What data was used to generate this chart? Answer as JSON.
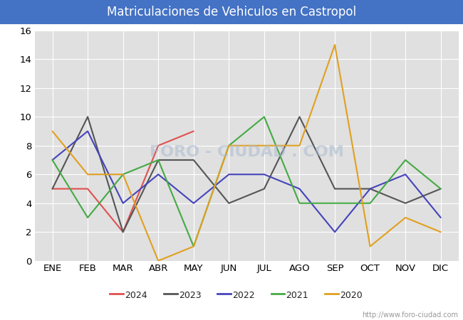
{
  "title": "Matriculaciones de Vehiculos en Castropol",
  "title_bg_color": "#4472c4",
  "title_text_color": "#ffffff",
  "plot_bg_color": "#e0e0e0",
  "fig_bg_color": "#ffffff",
  "months": [
    "ENE",
    "FEB",
    "MAR",
    "ABR",
    "MAY",
    "JUN",
    "JUL",
    "AGO",
    "SEP",
    "OCT",
    "NOV",
    "DIC"
  ],
  "ylim": [
    0,
    16
  ],
  "yticks": [
    0,
    2,
    4,
    6,
    8,
    10,
    12,
    14,
    16
  ],
  "series": {
    "2024": {
      "color": "#e05050",
      "data": [
        5,
        5,
        2,
        8,
        9,
        null,
        null,
        null,
        null,
        null,
        null,
        null
      ]
    },
    "2023": {
      "color": "#555555",
      "data": [
        5,
        10,
        2,
        7,
        7,
        4,
        5,
        10,
        5,
        5,
        4,
        5
      ]
    },
    "2022": {
      "color": "#4444bb",
      "data": [
        7,
        9,
        4,
        6,
        4,
        6,
        6,
        5,
        2,
        5,
        6,
        3
      ]
    },
    "2021": {
      "color": "#44aa44",
      "data": [
        7,
        3,
        6,
        7,
        1,
        8,
        10,
        4,
        4,
        4,
        7,
        5
      ]
    },
    "2020": {
      "color": "#e0a020",
      "data": [
        9,
        6,
        6,
        0,
        1,
        8,
        8,
        8,
        15,
        1,
        3,
        2
      ]
    }
  },
  "legend_years": [
    "2024",
    "2023",
    "2022",
    "2021",
    "2020"
  ],
  "url": "http://www.foro-ciudad.com",
  "grid_color": "#ffffff",
  "tick_fontsize": 9.5
}
